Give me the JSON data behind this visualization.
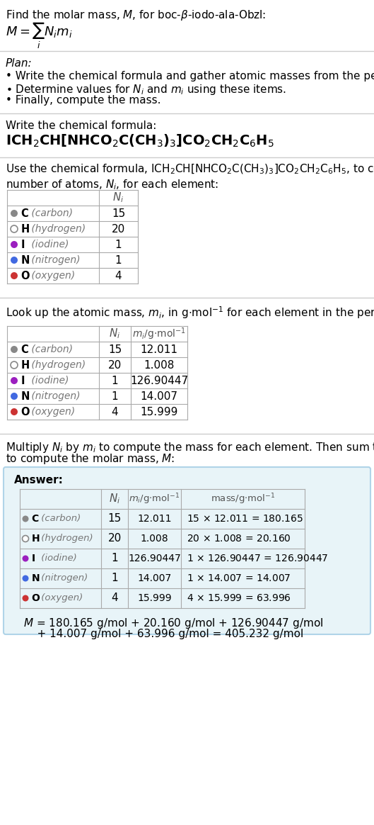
{
  "title_line": "Find the molar mass, M, for boc-β-iodo-ala-Obzl:",
  "formula_display": "ICH₂CH[NHCO₂C(CH₃)₃]CO₂CH₂C₆H₅",
  "elements": [
    "C (carbon)",
    "H (hydrogen)",
    "I (iodine)",
    "N (nitrogen)",
    "O (oxygen)"
  ],
  "symbols": [
    "C",
    "H",
    "I",
    "N",
    "O"
  ],
  "names": [
    "carbon",
    "hydrogen",
    "iodine",
    "nitrogen",
    "oxygen"
  ],
  "Ni": [
    15,
    20,
    1,
    1,
    4
  ],
  "mi": [
    12.011,
    1.008,
    126.90447,
    14.007,
    15.999
  ],
  "mass_expr": [
    "15 × 12.011 = 180.165",
    "20 × 1.008 = 20.160",
    "1 × 126.90447 = 126.90447",
    "1 × 14.007 = 14.007",
    "4 × 15.999 = 63.996"
  ],
  "dot_colors": [
    "#888888",
    "white",
    "#9B1FBF",
    "#4169E1",
    "#CC3333"
  ],
  "dot_edge_colors": [
    "#888888",
    "#888888",
    "#9B1FBF",
    "#4169E1",
    "#CC3333"
  ],
  "bg_color": "#ffffff",
  "answer_bg": "#E8F4F8",
  "answer_border": "#B0D4E8",
  "final_eq": "M = 180.165 g/mol + 20.160 g/mol + 126.90447 g/mol\n    + 14.007 g/mol + 63.996 g/mol = 405.232 g/mol",
  "plan_items": [
    "• Write the chemical formula and gather atomic masses from the periodic table.",
    "• Determine values for Nᵢ and mᵢ using these items.",
    "• Finally, compute the mass."
  ]
}
